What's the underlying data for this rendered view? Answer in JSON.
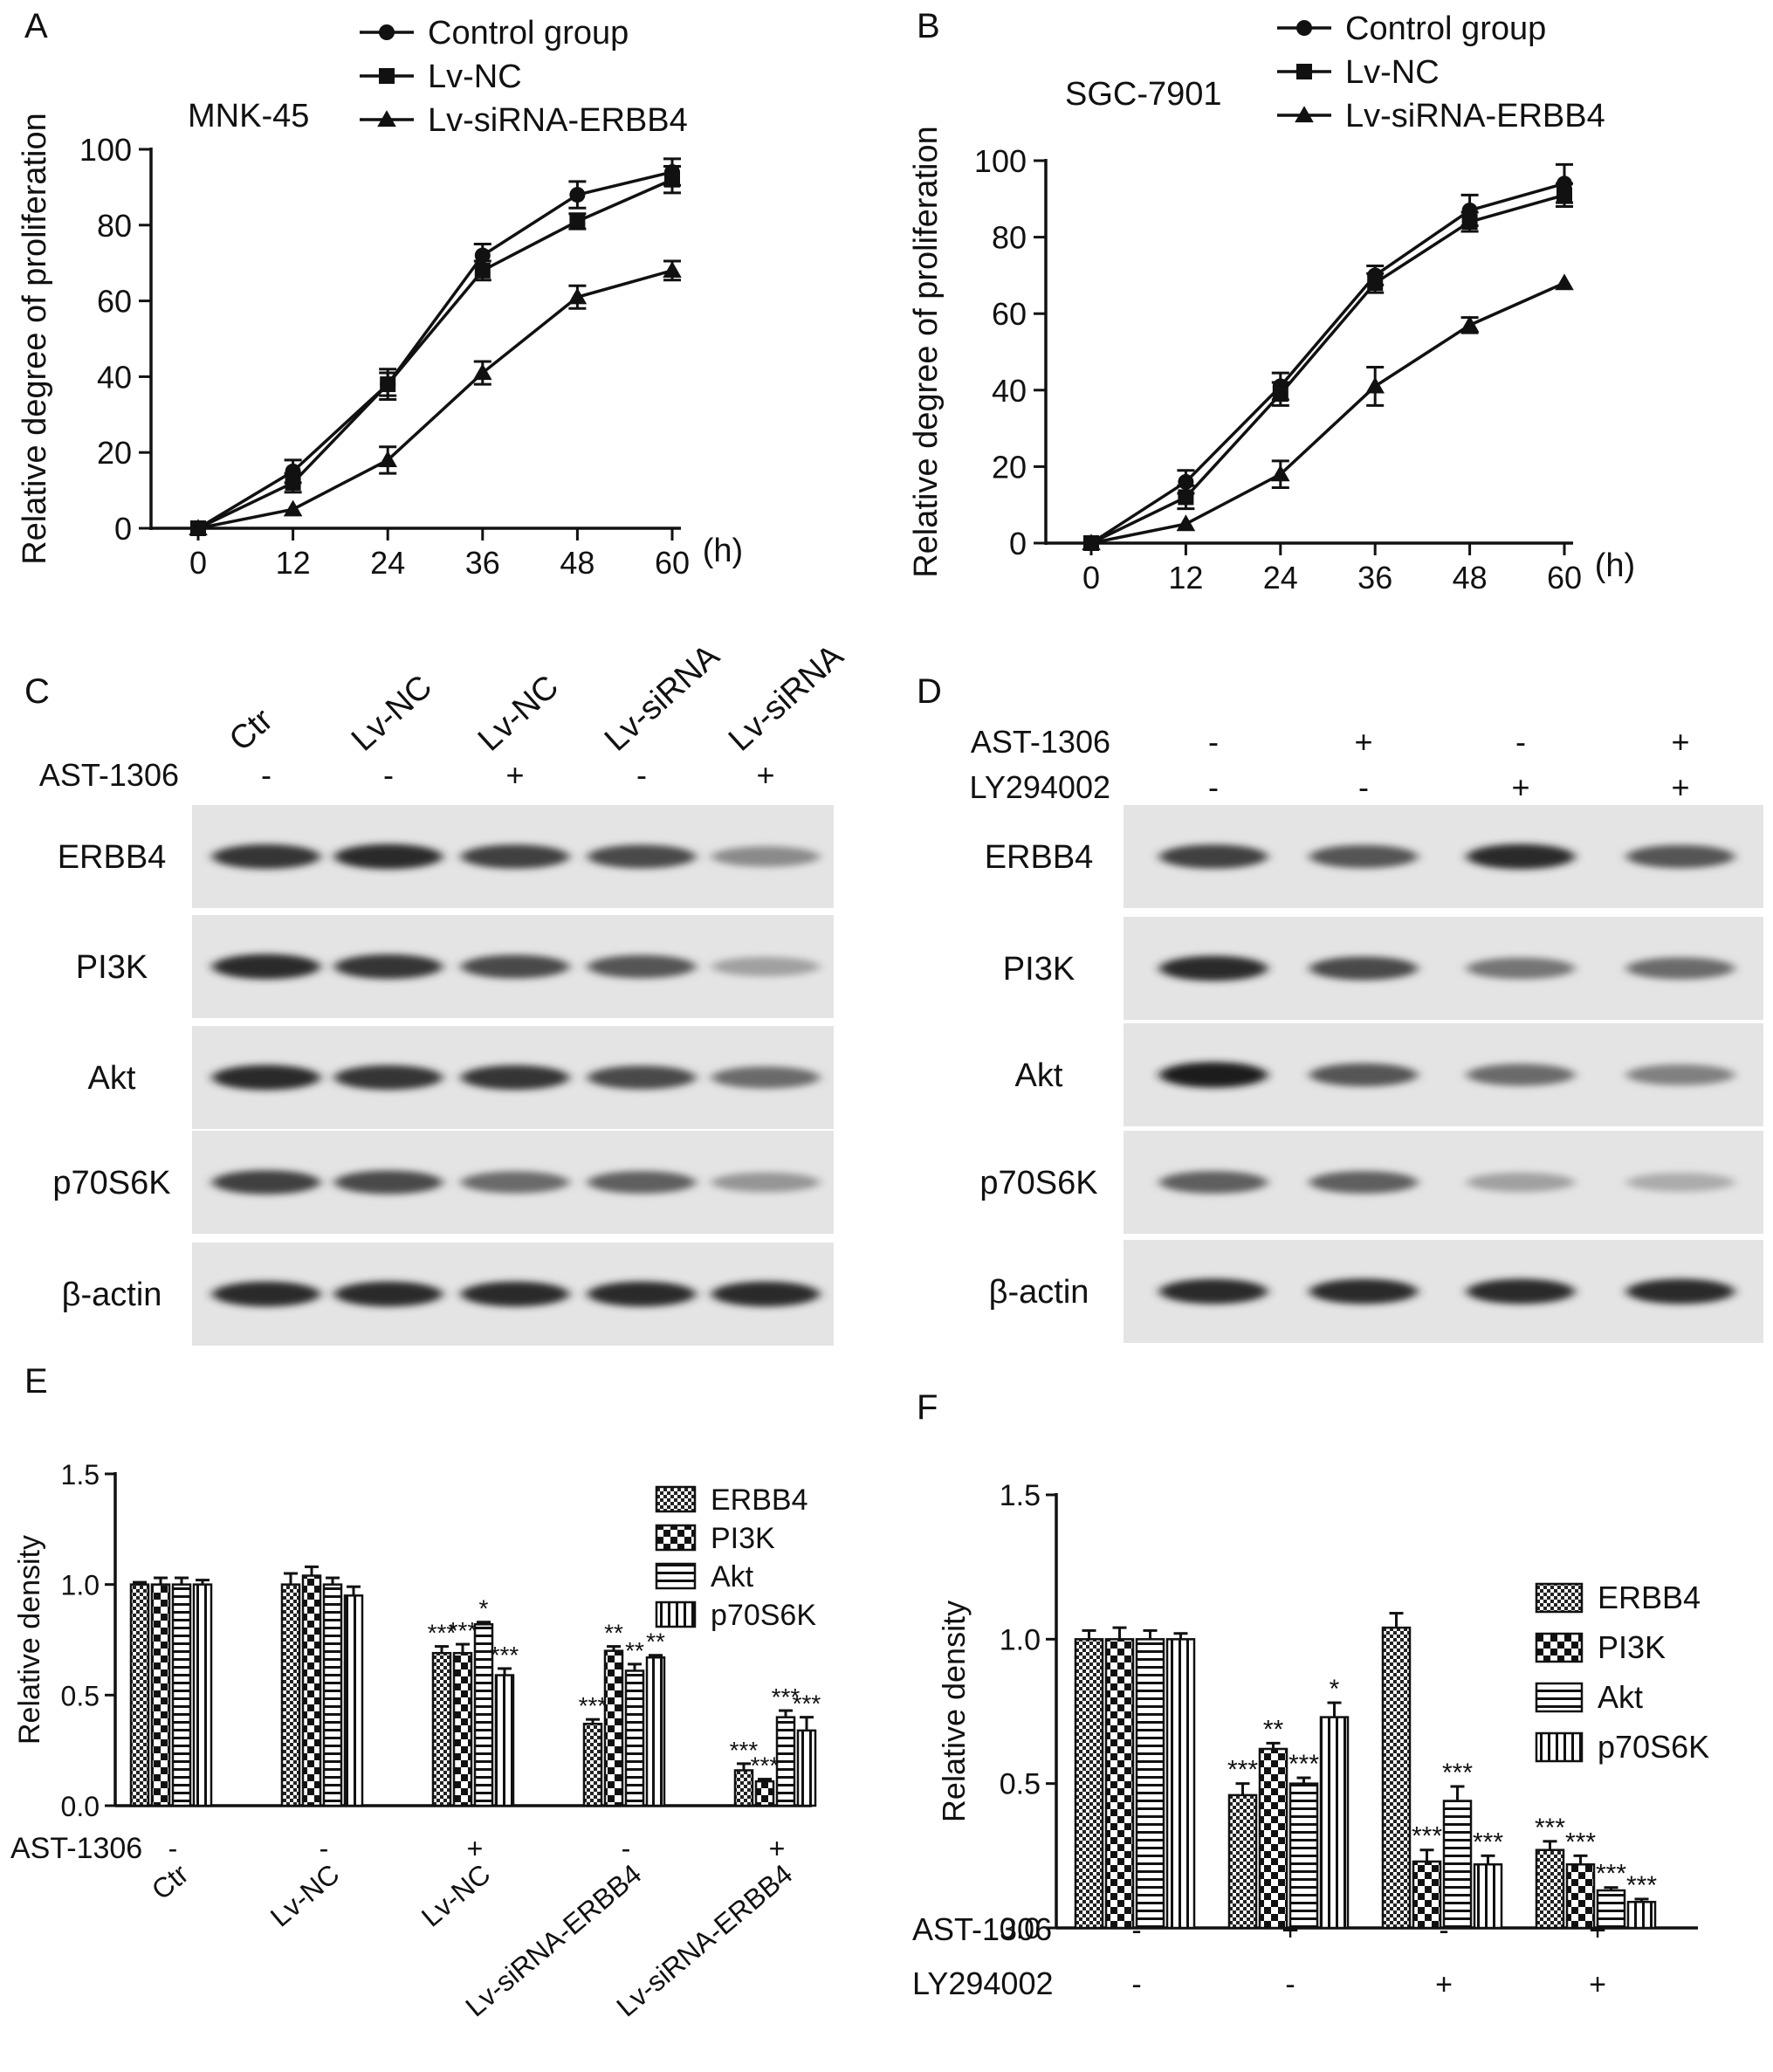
{
  "panels": {
    "A": {
      "letter": "A"
    },
    "B": {
      "letter": "B"
    },
    "C": {
      "letter": "C"
    },
    "D": {
      "letter": "D"
    },
    "E": {
      "letter": "E"
    },
    "F": {
      "letter": "F"
    }
  },
  "chart_data": [
    {
      "panel": "A",
      "type": "line",
      "title": "MNK-45",
      "xlabel": "(h)",
      "ylabel": "Relative degree of proliferation",
      "x": [
        0,
        12,
        24,
        36,
        48,
        60
      ],
      "xticks": [
        "0",
        "12",
        "24",
        "36",
        "48",
        "60"
      ],
      "ylim": [
        0,
        100
      ],
      "yticks": [
        "0",
        "20",
        "40",
        "60",
        "80",
        "100"
      ],
      "legend_position": "top",
      "series": [
        {
          "name": "Control group",
          "marker": "circle",
          "values": [
            0,
            15,
            38,
            72,
            88,
            94
          ],
          "errors": [
            0,
            3,
            3,
            3,
            3.5,
            3.5
          ]
        },
        {
          "name": "Lv-NC",
          "marker": "square",
          "values": [
            0,
            12,
            38,
            68,
            81,
            92
          ],
          "errors": [
            0,
            2.5,
            4,
            2.5,
            2,
            3.5
          ]
        },
        {
          "name": "Lv-siRNA-ERBB4",
          "marker": "triangle",
          "values": [
            0,
            5,
            18,
            41,
            61,
            68
          ],
          "errors": [
            0,
            0,
            3.5,
            3,
            3,
            2.5
          ]
        }
      ]
    },
    {
      "panel": "B",
      "type": "line",
      "title": "SGC-7901",
      "xlabel": "(h)",
      "ylabel": "Relative degree of proliferation",
      "x": [
        0,
        12,
        24,
        36,
        48,
        60
      ],
      "xticks": [
        "0",
        "12",
        "24",
        "36",
        "48",
        "60"
      ],
      "ylim": [
        0,
        100
      ],
      "yticks": [
        "0",
        "20",
        "40",
        "60",
        "80",
        "100"
      ],
      "legend_position": "top",
      "series": [
        {
          "name": "Control group",
          "marker": "circle",
          "values": [
            0,
            16,
            41,
            70,
            87,
            94
          ],
          "errors": [
            0,
            3,
            3.5,
            2.5,
            4,
            5
          ]
        },
        {
          "name": "Lv-NC",
          "marker": "square",
          "values": [
            0,
            12,
            39,
            68,
            84,
            91
          ],
          "errors": [
            0,
            3,
            3,
            2.5,
            2.5,
            3
          ]
        },
        {
          "name": "Lv-siRNA-ERBB4",
          "marker": "triangle",
          "values": [
            0,
            5,
            18,
            41,
            57,
            68
          ],
          "errors": [
            0,
            0,
            3.5,
            5,
            2,
            0
          ]
        }
      ]
    },
    {
      "panel": "E",
      "type": "bar",
      "xlabel": "",
      "ylabel": "Relative density",
      "ylim": [
        0,
        1.5
      ],
      "yticks": [
        "0.0",
        "0.5",
        "1.0",
        "1.5"
      ],
      "categories": [
        "Ctr",
        "Lv-NC",
        "Lv-NC",
        "Lv-siRNA-ERBB4",
        "Lv-siRNA-ERBB4"
      ],
      "treatment_rows": [
        {
          "label": "AST-1306",
          "values": [
            "-",
            "-",
            "+",
            "-",
            "+"
          ]
        }
      ],
      "legend_position": "top-right",
      "series": [
        {
          "name": "ERBB4",
          "pattern": "checker-fine",
          "values": [
            1.0,
            1.0,
            0.69,
            0.37,
            0.16
          ],
          "errors": [
            0.01,
            0.05,
            0.03,
            0.02,
            0.03
          ],
          "sig": [
            "",
            "",
            "***",
            "***",
            "***"
          ]
        },
        {
          "name": "PI3K",
          "pattern": "checker-coarse",
          "values": [
            1.0,
            1.04,
            0.69,
            0.7,
            0.11
          ],
          "errors": [
            0.03,
            0.04,
            0.04,
            0.02,
            0.01
          ],
          "sig": [
            "",
            "",
            "***",
            "**",
            "***"
          ]
        },
        {
          "name": "Akt",
          "pattern": "horizontal",
          "values": [
            1.0,
            1.0,
            0.82,
            0.61,
            0.4
          ],
          "errors": [
            0.03,
            0.03,
            0.01,
            0.03,
            0.03
          ],
          "sig": [
            "",
            "",
            "*",
            "**",
            "***"
          ]
        },
        {
          "name": "p70S6K",
          "pattern": "vertical",
          "values": [
            1.0,
            0.95,
            0.59,
            0.67,
            0.34
          ],
          "errors": [
            0.02,
            0.04,
            0.03,
            0.01,
            0.06
          ],
          "sig": [
            "",
            "",
            "***",
            "**",
            "***"
          ]
        }
      ]
    },
    {
      "panel": "F",
      "type": "bar",
      "xlabel": "",
      "ylabel": "Relative density",
      "ylim": [
        0,
        1.5
      ],
      "yticks": [
        "0.0",
        "0.5",
        "1.0",
        "1.5"
      ],
      "categories": [
        "",
        "",
        "",
        ""
      ],
      "treatment_rows": [
        {
          "label": "AST-1306",
          "values": [
            "-",
            "+",
            "-",
            "+"
          ]
        },
        {
          "label": "LY294002",
          "values": [
            "-",
            "-",
            "+",
            "+"
          ]
        }
      ],
      "legend_position": "right",
      "series": [
        {
          "name": "ERBB4",
          "pattern": "checker-fine",
          "values": [
            1.0,
            0.46,
            1.04,
            0.27
          ],
          "errors": [
            0.03,
            0.04,
            0.05,
            0.03
          ],
          "sig": [
            "",
            "***",
            "",
            "***"
          ]
        },
        {
          "name": "PI3K",
          "pattern": "checker-coarse",
          "values": [
            1.0,
            0.62,
            0.23,
            0.22
          ],
          "errors": [
            0.04,
            0.02,
            0.04,
            0.03
          ],
          "sig": [
            "",
            "**",
            "***",
            "***"
          ]
        },
        {
          "name": "Akt",
          "pattern": "horizontal",
          "values": [
            1.0,
            0.5,
            0.44,
            0.13
          ],
          "errors": [
            0.03,
            0.02,
            0.05,
            0.01
          ],
          "sig": [
            "",
            "***",
            "***",
            "***"
          ]
        },
        {
          "name": "p70S6K",
          "pattern": "vertical",
          "values": [
            1.0,
            0.73,
            0.22,
            0.09
          ],
          "errors": [
            0.02,
            0.05,
            0.03,
            0.01
          ],
          "sig": [
            "",
            "*",
            "***",
            "***"
          ]
        }
      ]
    }
  ],
  "blots": {
    "C": {
      "lanes": [
        "Ctr",
        "Lv-NC",
        "Lv-NC",
        "Lv-siRNA",
        "Lv-siRNA"
      ],
      "treatment_rows": [
        {
          "label": "AST-1306",
          "values": [
            "-",
            "-",
            "+",
            "-",
            "+"
          ]
        }
      ],
      "bands": [
        {
          "label": "ERBB4",
          "intensity": [
            0.85,
            0.9,
            0.8,
            0.75,
            0.45
          ]
        },
        {
          "label": "PI3K",
          "intensity": [
            0.9,
            0.85,
            0.75,
            0.7,
            0.35
          ]
        },
        {
          "label": "Akt",
          "intensity": [
            0.9,
            0.85,
            0.85,
            0.75,
            0.6
          ]
        },
        {
          "label": "p70S6K",
          "intensity": [
            0.8,
            0.75,
            0.6,
            0.65,
            0.4
          ]
        },
        {
          "label": "β-actin",
          "intensity": [
            0.9,
            0.9,
            0.9,
            0.9,
            0.9
          ]
        }
      ]
    },
    "D": {
      "treatment_rows": [
        {
          "label": "AST-1306",
          "values": [
            "-",
            "+",
            "-",
            "+"
          ]
        },
        {
          "label": "LY294002",
          "values": [
            "-",
            "-",
            "+",
            "+"
          ]
        }
      ],
      "bands": [
        {
          "label": "ERBB4",
          "intensity": [
            0.8,
            0.7,
            0.9,
            0.7
          ]
        },
        {
          "label": "PI3K",
          "intensity": [
            0.9,
            0.75,
            0.55,
            0.6
          ]
        },
        {
          "label": "Akt",
          "intensity": [
            0.95,
            0.7,
            0.6,
            0.5
          ]
        },
        {
          "label": "p70S6K",
          "intensity": [
            0.65,
            0.65,
            0.35,
            0.3
          ]
        },
        {
          "label": "β-actin",
          "intensity": [
            0.9,
            0.9,
            0.9,
            0.9
          ]
        }
      ]
    }
  }
}
